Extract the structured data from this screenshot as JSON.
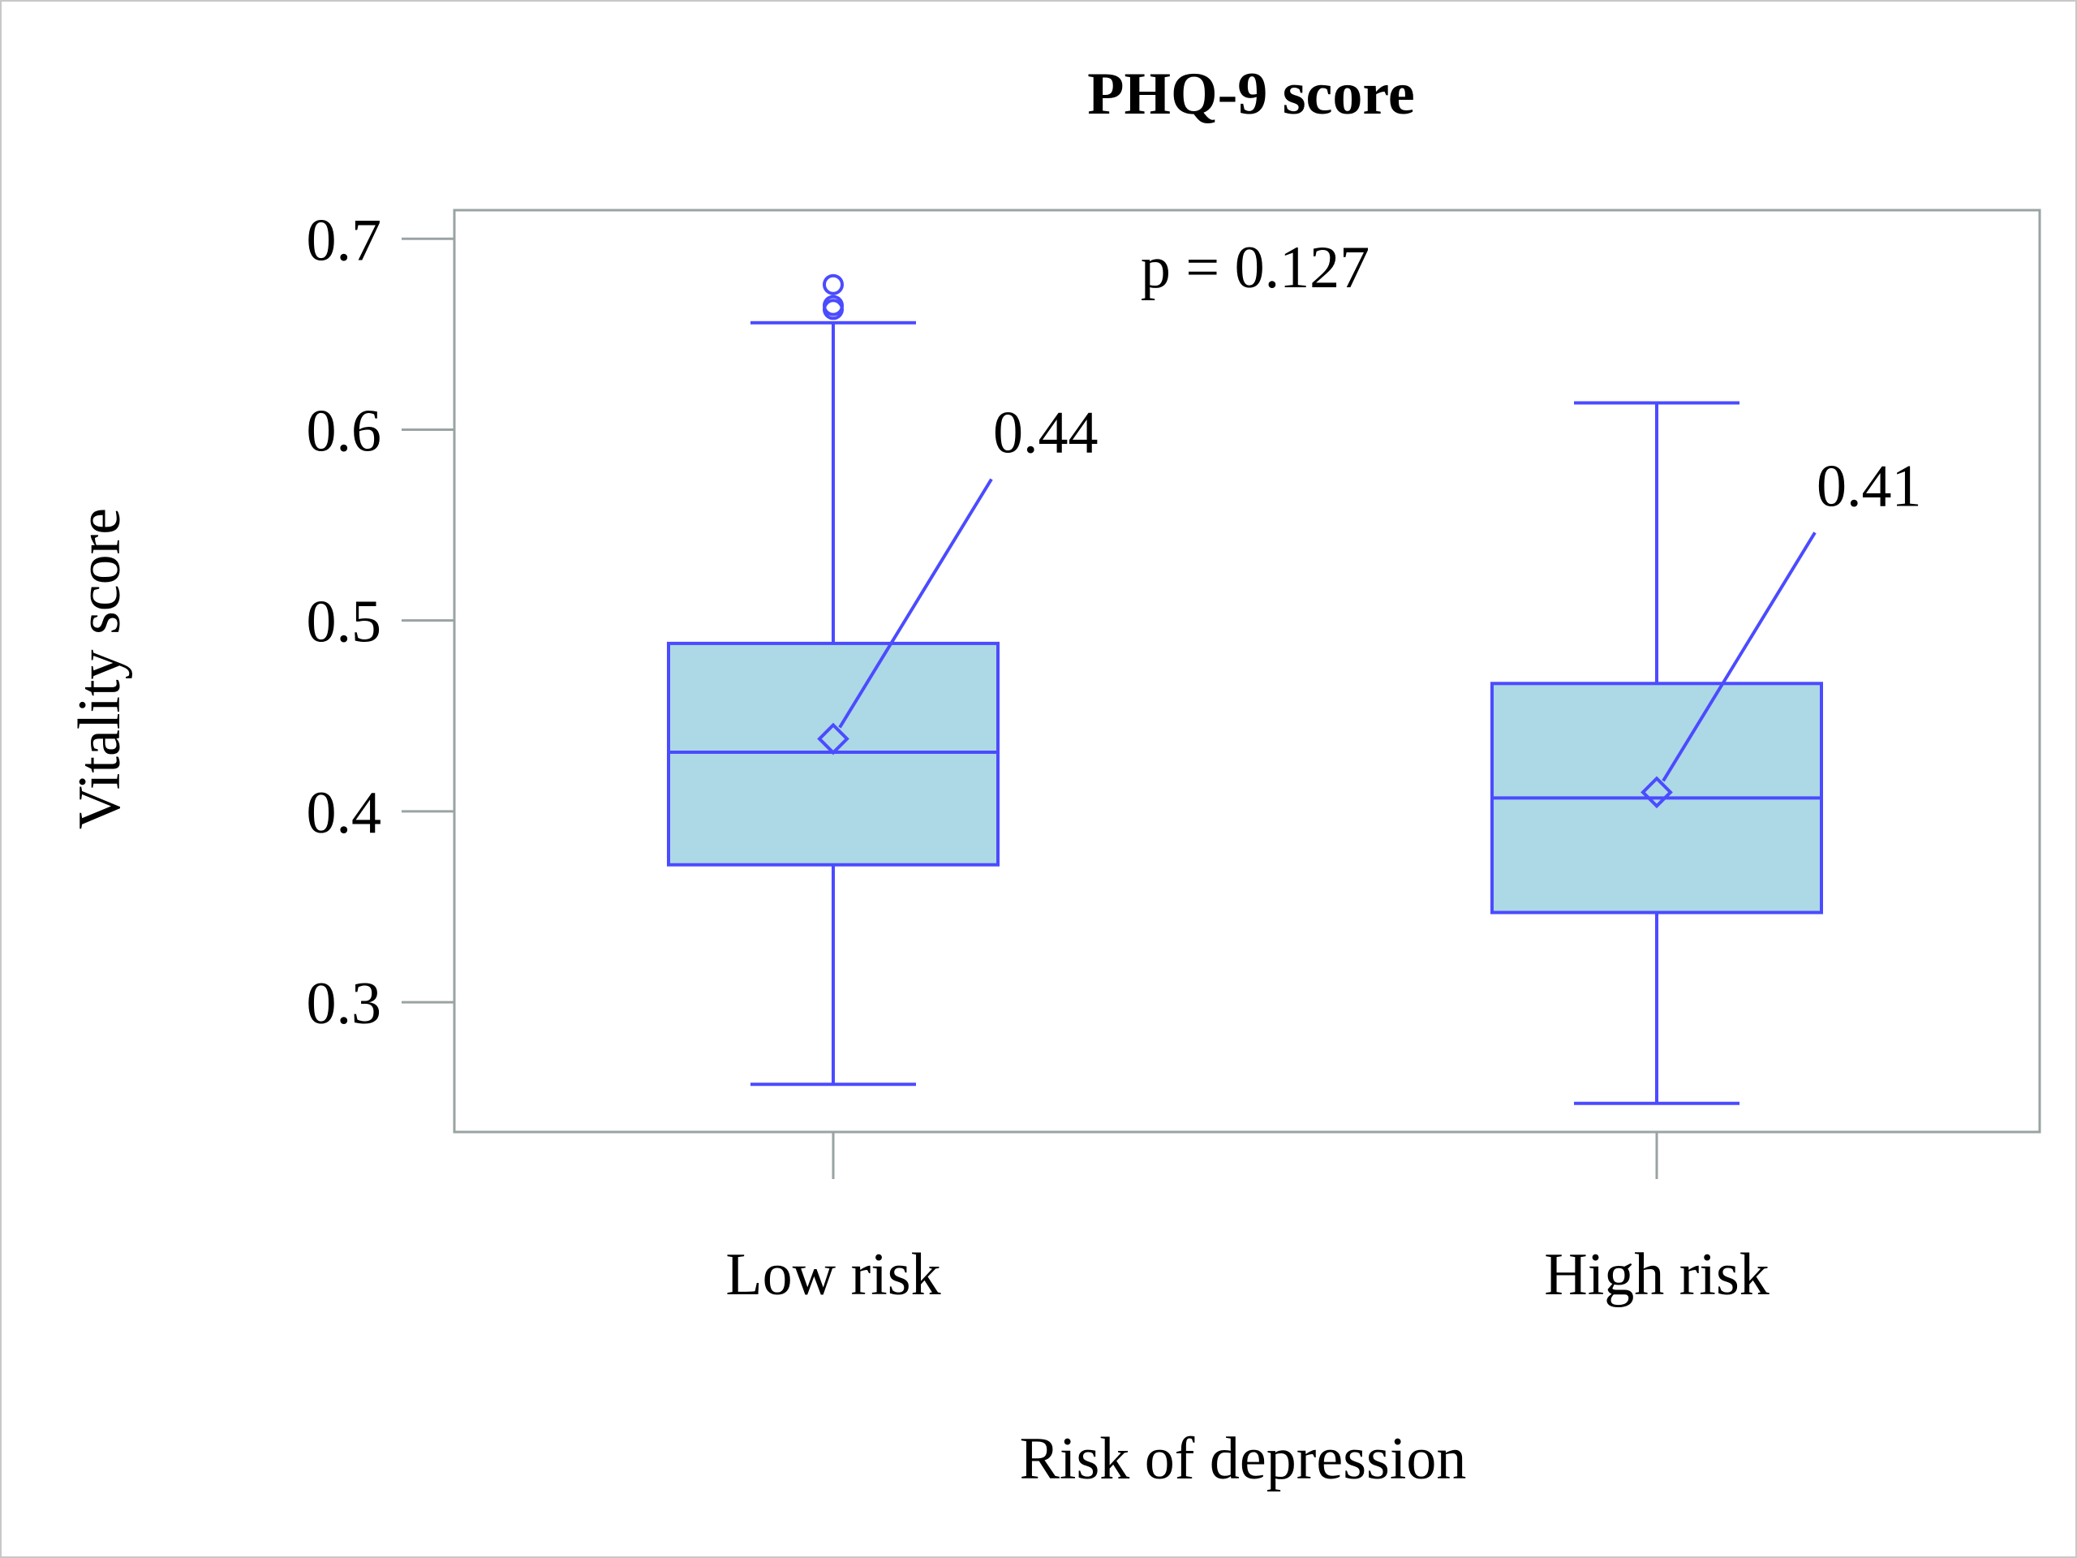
{
  "chart_data": {
    "type": "box",
    "title": "PHQ-9 score",
    "xlabel": "Risk of depression",
    "ylabel": "Vitality score",
    "annotation": "p = 0.127",
    "ylim": [
      0.232,
      0.715
    ],
    "yticks": [
      0.3,
      0.4,
      0.5,
      0.6,
      0.7
    ],
    "ytick_labels": [
      "0.3",
      "0.4",
      "0.5",
      "0.6",
      "0.7"
    ],
    "categories": [
      "Low risk",
      "High risk"
    ],
    "boxes": [
      {
        "category": "Low risk",
        "min": 0.257,
        "q1": 0.372,
        "median": 0.431,
        "q3": 0.488,
        "max": 0.656,
        "mean": 0.438,
        "mean_label": "0.44",
        "outliers": [
          0.663,
          0.665,
          0.676
        ]
      },
      {
        "category": "High risk",
        "min": 0.247,
        "q1": 0.347,
        "median": 0.407,
        "q3": 0.467,
        "max": 0.614,
        "mean": 0.41,
        "mean_label": "0.41",
        "outliers": []
      }
    ],
    "colors": {
      "box_fill": "#add8e6",
      "box_line": "#4b4bff",
      "frame": "#9aa3a3",
      "text": "#000000"
    },
    "legend": "none",
    "grid": false
  }
}
